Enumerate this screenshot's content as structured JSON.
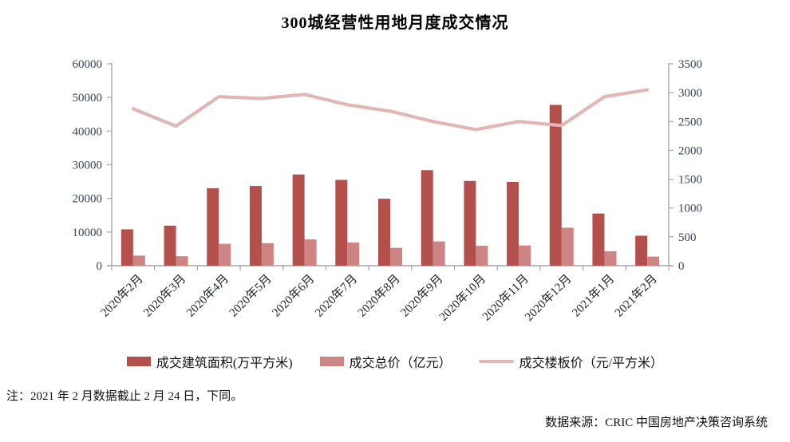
{
  "title": "300城经营性用地月度成交情况",
  "note": "注：2021 年 2 月数据截止 2 月 24 日，下同。",
  "source": "数据来源：CRIC 中国房地产决策咨询系统",
  "colors": {
    "bar_dark": "#b3504c",
    "bar_light": "#cd8583",
    "line": "#e2b6b4",
    "axis": "#a6a6a6",
    "tick_text": "#3a4356",
    "body_text": "#111111",
    "background": "#ffffff"
  },
  "chart_data": {
    "type": "bar",
    "subtype": "bar+line combo, dual y-axis",
    "title": "300城经营性用地月度成交情况",
    "grid": false,
    "legend_position": "bottom",
    "categories": [
      "2020年2月",
      "2020年3月",
      "2020年4月",
      "2020年5月",
      "2020年6月",
      "2020年7月",
      "2020年8月",
      "2020年9月",
      "2020年10月",
      "2020年11月",
      "2020年12月",
      "2021年1月",
      "2021年2月"
    ],
    "series": [
      {
        "name": "成交建筑面积(万平方米)",
        "type": "bar",
        "axis": "left",
        "color": "#b3504c",
        "values": [
          10800,
          11900,
          23000,
          23700,
          27100,
          25500,
          19900,
          28400,
          25200,
          24900,
          47800,
          15500,
          8900
        ]
      },
      {
        "name": "成交总价（亿元）",
        "type": "bar",
        "axis": "left",
        "color": "#cd8583",
        "values": [
          3000,
          2800,
          6500,
          6700,
          7800,
          6900,
          5300,
          7200,
          5900,
          6000,
          11300,
          4300,
          2700
        ]
      },
      {
        "name": "成交楼板价（元/平方米）",
        "type": "line",
        "axis": "right",
        "color": "#e2b6b4",
        "values": [
          2720,
          2420,
          2930,
          2900,
          2970,
          2790,
          2680,
          2500,
          2360,
          2500,
          2430,
          2930,
          3050
        ]
      }
    ],
    "left_axis": {
      "min": 0,
      "max": 60000,
      "step": 10000,
      "tick_labels": [
        "0",
        "10000",
        "20000",
        "30000",
        "40000",
        "50000",
        "60000"
      ]
    },
    "right_axis": {
      "min": 0,
      "max": 3500,
      "step": 500,
      "tick_labels": [
        "0",
        "500",
        "1000",
        "1500",
        "2000",
        "2500",
        "3000",
        "3500"
      ]
    }
  }
}
